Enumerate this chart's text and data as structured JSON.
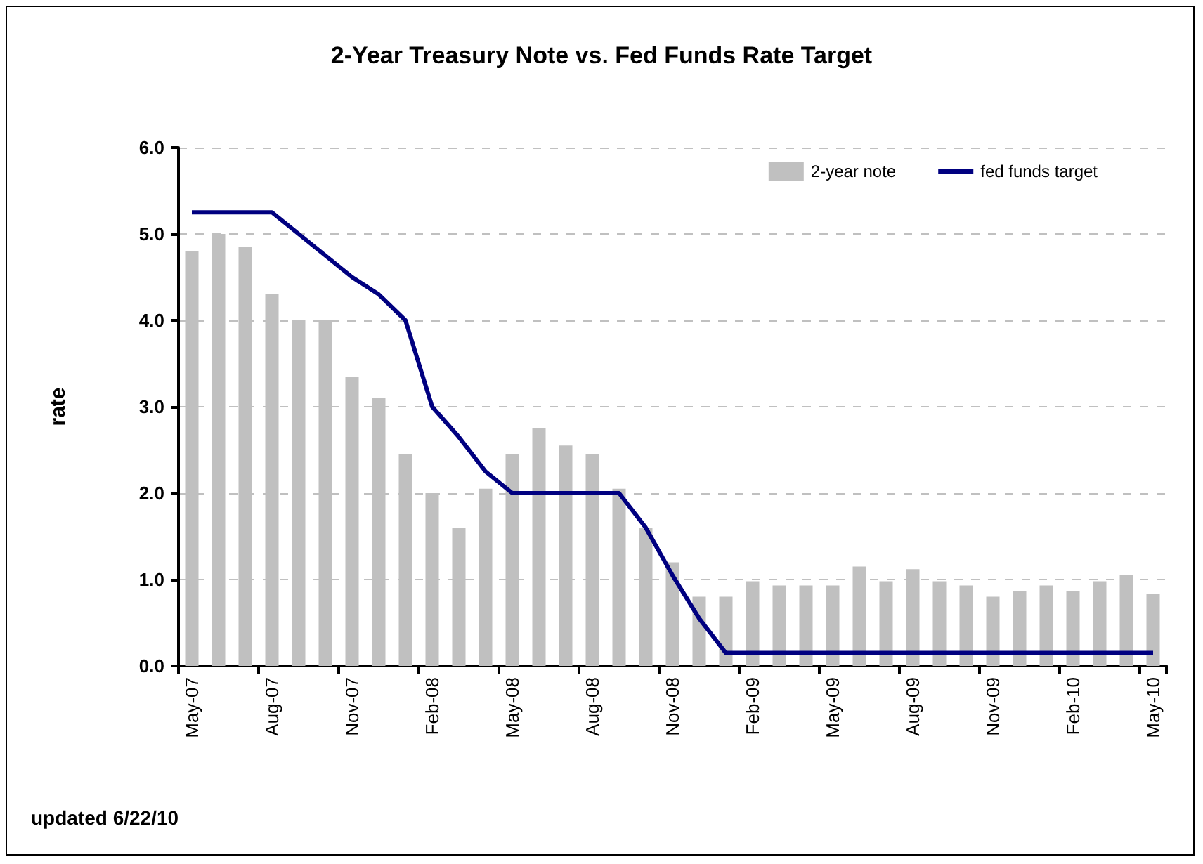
{
  "chart_data": {
    "type": "bar",
    "title": "2-Year Treasury Note vs. Fed Funds Rate Target",
    "ylabel": "rate",
    "categories": [
      "May-07",
      null,
      null,
      "Aug-07",
      null,
      null,
      "Nov-07",
      null,
      null,
      "Feb-08",
      null,
      null,
      "May-08",
      null,
      null,
      "Aug-08",
      null,
      null,
      "Nov-08",
      null,
      null,
      "Feb-09",
      null,
      null,
      "May-09",
      null,
      null,
      "Aug-09",
      null,
      null,
      "Nov-09",
      null,
      null,
      "Feb-10",
      null,
      null,
      "May-10"
    ],
    "series": [
      {
        "name": "2-year note",
        "color": "#c0c0c0",
        "values": [
          4.8,
          5.0,
          4.85,
          4.3,
          4.0,
          4.0,
          3.35,
          3.1,
          2.45,
          2.0,
          1.6,
          2.05,
          2.45,
          2.75,
          2.55,
          2.45,
          2.05,
          1.6,
          1.2,
          0.8,
          0.8,
          0.98,
          0.93,
          0.93,
          0.93,
          1.15,
          0.98,
          1.12,
          0.98,
          0.93,
          0.8,
          0.87,
          0.93,
          0.87,
          0.98,
          1.05,
          0.83
        ]
      },
      {
        "name": "fed funds target",
        "type": "line",
        "color": "#000080",
        "values": [
          5.25,
          5.25,
          5.25,
          5.25,
          5.0,
          4.75,
          4.5,
          4.3,
          4.0,
          3.0,
          2.65,
          2.25,
          2.0,
          2.0,
          2.0,
          2.0,
          2.0,
          1.6,
          1.05,
          0.55,
          0.15,
          0.15,
          0.15,
          0.15,
          0.15,
          0.15,
          0.15,
          0.15,
          0.15,
          0.15,
          0.15,
          0.15,
          0.15,
          0.15,
          0.15,
          0.15,
          0.15
        ]
      }
    ],
    "ylim": [
      0,
      6
    ],
    "yticks": [
      {
        "value": 0,
        "label": "0.0"
      },
      {
        "value": 1,
        "label": "1.0"
      },
      {
        "value": 2,
        "label": "2.0"
      },
      {
        "value": 3,
        "label": "3.0"
      },
      {
        "value": 4,
        "label": "4.0"
      },
      {
        "value": 5,
        "label": "5.0"
      },
      {
        "value": 6,
        "label": "6.0"
      }
    ],
    "grid": "y",
    "legend": "top right",
    "marker": "none",
    "line_style": "solid",
    "annotations": [
      "updated 6/22/10"
    ]
  }
}
